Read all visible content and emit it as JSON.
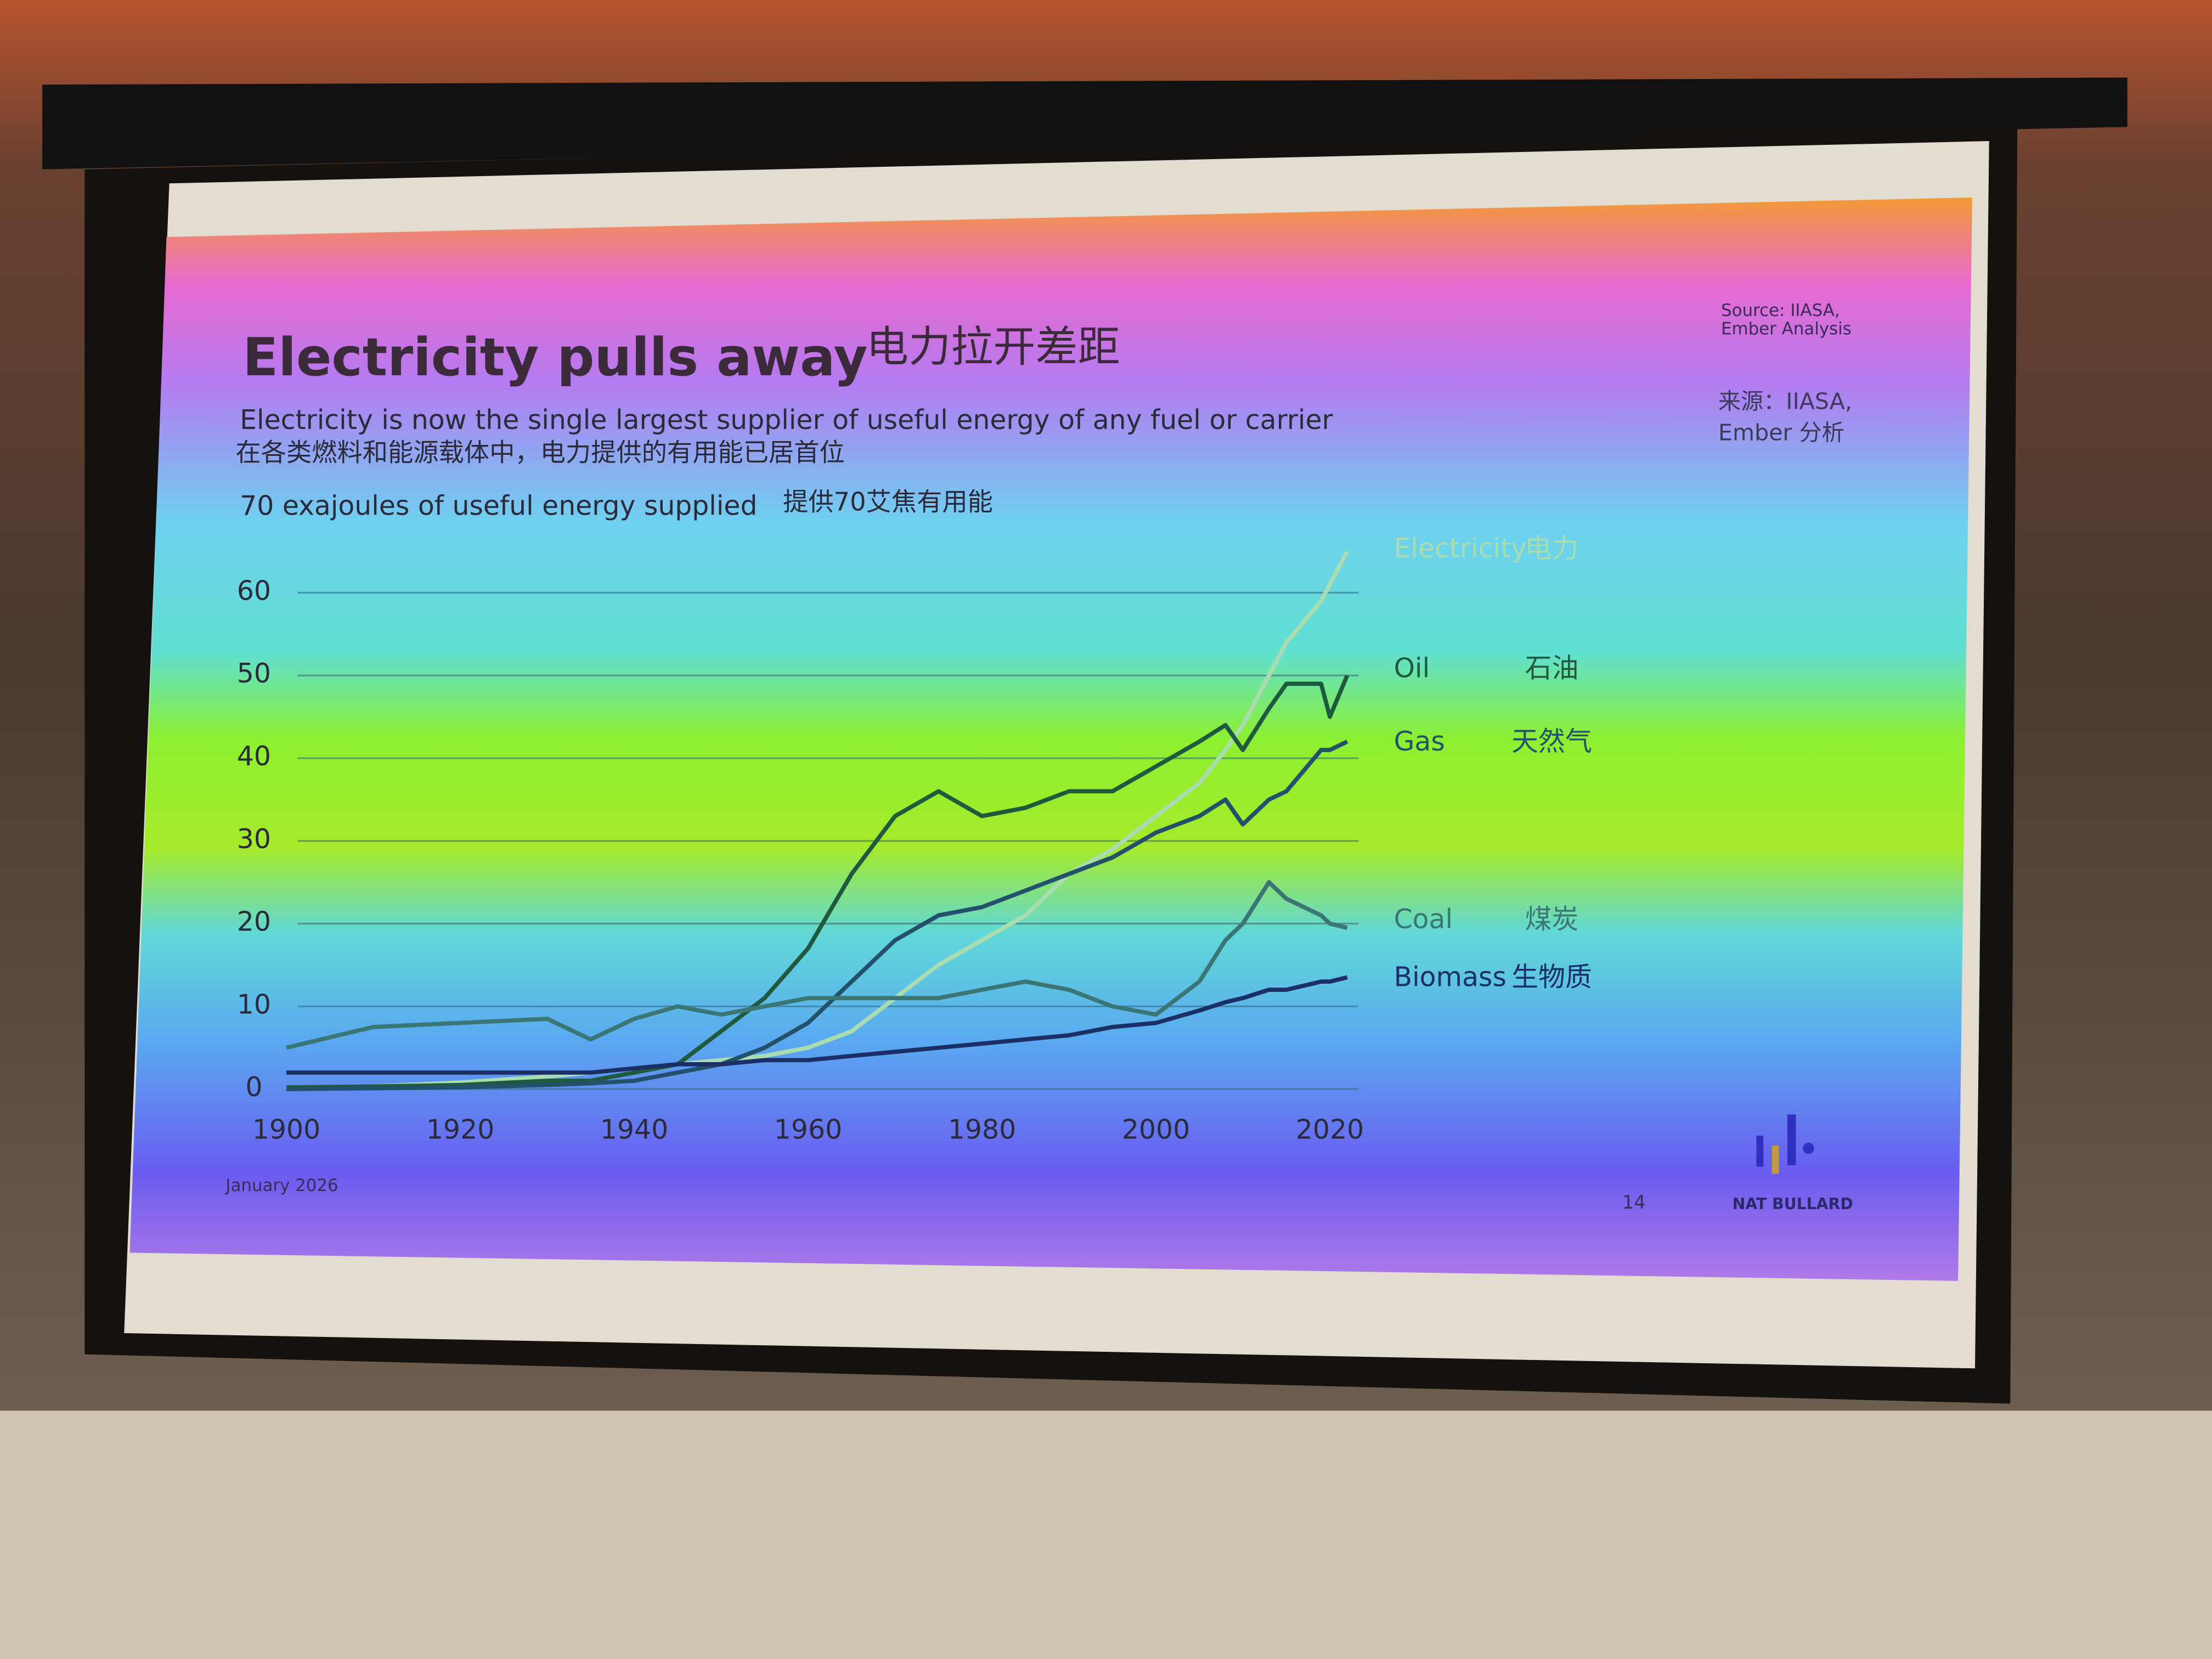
{
  "chart_data": {
    "type": "line",
    "title": "Electricity pulls away",
    "title_zh": "电力拉开差距",
    "subtitle": "Electricity is now the single largest supplier of useful energy of any fuel or carrier",
    "subtitle_zh": "在各类燃料和能源载体中，电力提供的有用能已居首位",
    "y_label": "70 exajoules of useful energy supplied",
    "y_label_zh": "提供70艾焦有用能",
    "source": "Source: IIASA, Ember Analysis",
    "source_zh": "来源：IIASA, Ember 分析",
    "date": "January 2026",
    "page": "14",
    "brand": "NAT BULLARD",
    "x": [
      1900,
      1910,
      1920,
      1930,
      1935,
      1940,
      1945,
      1950,
      1955,
      1960,
      1965,
      1970,
      1975,
      1980,
      1985,
      1990,
      1995,
      2000,
      2005,
      2008,
      2010,
      2013,
      2015,
      2019,
      2020,
      2022
    ],
    "xlim": [
      1900,
      2022
    ],
    "xticks": [
      1900,
      1920,
      1940,
      1960,
      1980,
      2000,
      2020
    ],
    "ylim": [
      0,
      66
    ],
    "yticks": [
      0,
      10,
      20,
      30,
      40,
      50,
      60
    ],
    "grid": true,
    "series": [
      {
        "name": "Electricity",
        "name_zh": "电力",
        "color": "#a9dcb0",
        "values": [
          0.1,
          0.3,
          0.8,
          1.5,
          2,
          2.5,
          3,
          3.5,
          4,
          5,
          7,
          11,
          15,
          18,
          21,
          26,
          29,
          33,
          37,
          41,
          44,
          50,
          54,
          59,
          61,
          65
        ]
      },
      {
        "name": "Oil",
        "name_zh": "石油",
        "color": "#1f5a3e",
        "values": [
          0.2,
          0.3,
          0.5,
          1,
          1,
          2,
          3,
          7,
          11,
          17,
          26,
          33,
          36,
          33,
          34,
          36,
          36,
          39,
          42,
          44,
          41,
          46,
          49,
          49,
          45,
          50
        ]
      },
      {
        "name": "Gas",
        "name_zh": "天然气",
        "color": "#23506a",
        "values": [
          0,
          0.1,
          0.2,
          0.5,
          0.7,
          1,
          2,
          3,
          5,
          8,
          13,
          18,
          21,
          22,
          24,
          26,
          28,
          31,
          33,
          35,
          32,
          35,
          36,
          41,
          41,
          42
        ]
      },
      {
        "name": "Coal",
        "name_zh": "煤炭",
        "color": "#3b7676",
        "values": [
          5,
          7.5,
          8,
          8.5,
          6,
          8.5,
          10,
          9,
          10,
          11,
          11,
          11,
          11,
          12,
          13,
          12,
          10,
          9,
          13,
          18,
          20,
          25,
          23,
          21,
          20,
          19.5
        ]
      },
      {
        "name": "Biomass",
        "name_zh": "生物质",
        "color": "#1b2f66",
        "values": [
          2,
          2,
          2,
          2,
          2,
          2.5,
          3,
          3,
          3.5,
          3.5,
          4,
          4.5,
          5,
          5.5,
          6,
          6.5,
          7.5,
          8,
          9.5,
          10.5,
          11,
          12,
          12,
          13,
          13,
          13.5
        ]
      }
    ]
  }
}
